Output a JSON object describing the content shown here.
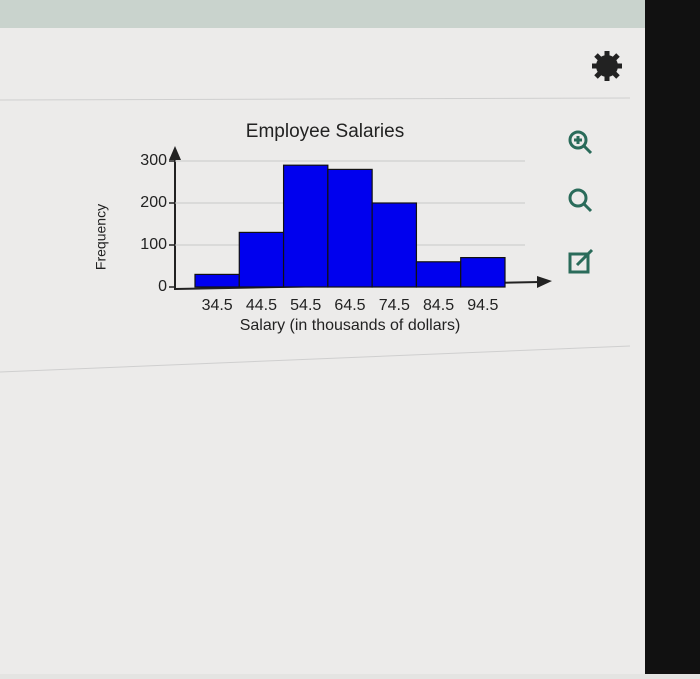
{
  "chart_data": {
    "type": "bar",
    "title": "Employee Salaries",
    "x_label": "Salary (in thousands of dollars)",
    "y_label": "Frequency",
    "categories": [
      "34.5",
      "44.5",
      "54.5",
      "64.5",
      "74.5",
      "84.5",
      "94.5"
    ],
    "values": [
      30,
      130,
      290,
      280,
      200,
      60,
      70
    ],
    "color": "#0000ee",
    "ylim": [
      0,
      330
    ],
    "yticks": [
      0,
      100,
      200,
      300
    ],
    "grid": true
  }
}
